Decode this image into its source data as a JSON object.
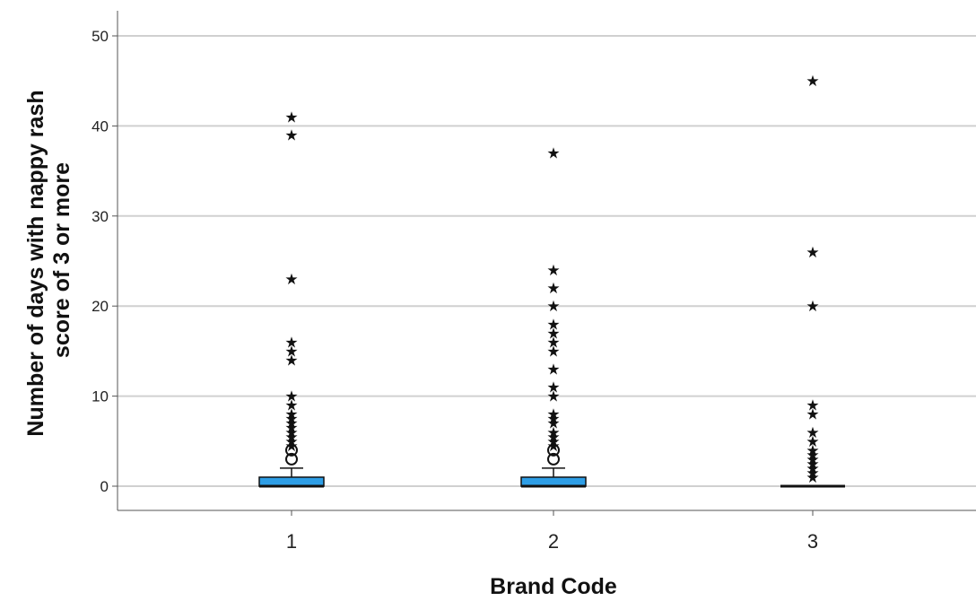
{
  "chart_data": {
    "type": "boxplot",
    "title": "",
    "xlabel": "Brand Code",
    "ylabel_lines": [
      "Number of days with nappy rash",
      "score of 3 or more"
    ],
    "categories": [
      "1",
      "2",
      "3"
    ],
    "ylim": [
      -2.8,
      53
    ],
    "yticks": [
      0,
      10,
      20,
      30,
      40,
      50
    ],
    "ytick_labels": [
      "0",
      "10",
      "20",
      "30",
      "40",
      "50"
    ],
    "grid": true,
    "colors": {
      "box": "#2e9ee6",
      "grid": "#d0d0d0",
      "marker": "#111111"
    },
    "outlier_symbol_mild": "○",
    "outlier_symbol_extreme": "★",
    "boxes": [
      {
        "category": "1",
        "min": 0,
        "q1": 0,
        "median": 0,
        "q3": 1,
        "max": 2,
        "mild_outliers": [
          3,
          4
        ],
        "extreme_outliers": [
          4.5,
          5,
          5.5,
          6,
          6.5,
          7,
          7.5,
          8,
          9,
          10,
          14,
          15,
          16,
          23,
          39,
          41
        ]
      },
      {
        "category": "2",
        "min": 0,
        "q1": 0,
        "median": 0,
        "q3": 1,
        "max": 2,
        "mild_outliers": [
          3,
          4
        ],
        "extreme_outliers": [
          4.5,
          5,
          5.5,
          6,
          7,
          7.5,
          8,
          10,
          11,
          13,
          15,
          16,
          17,
          18,
          20,
          22,
          24,
          37
        ]
      },
      {
        "category": "3",
        "min": 0,
        "q1": 0,
        "median": 0,
        "q3": 0,
        "max": 0,
        "mild_outliers": [],
        "extreme_outliers": [
          1,
          1.5,
          2,
          2.5,
          3,
          3.5,
          4,
          5,
          6,
          8,
          9,
          20,
          26,
          45
        ]
      }
    ]
  }
}
